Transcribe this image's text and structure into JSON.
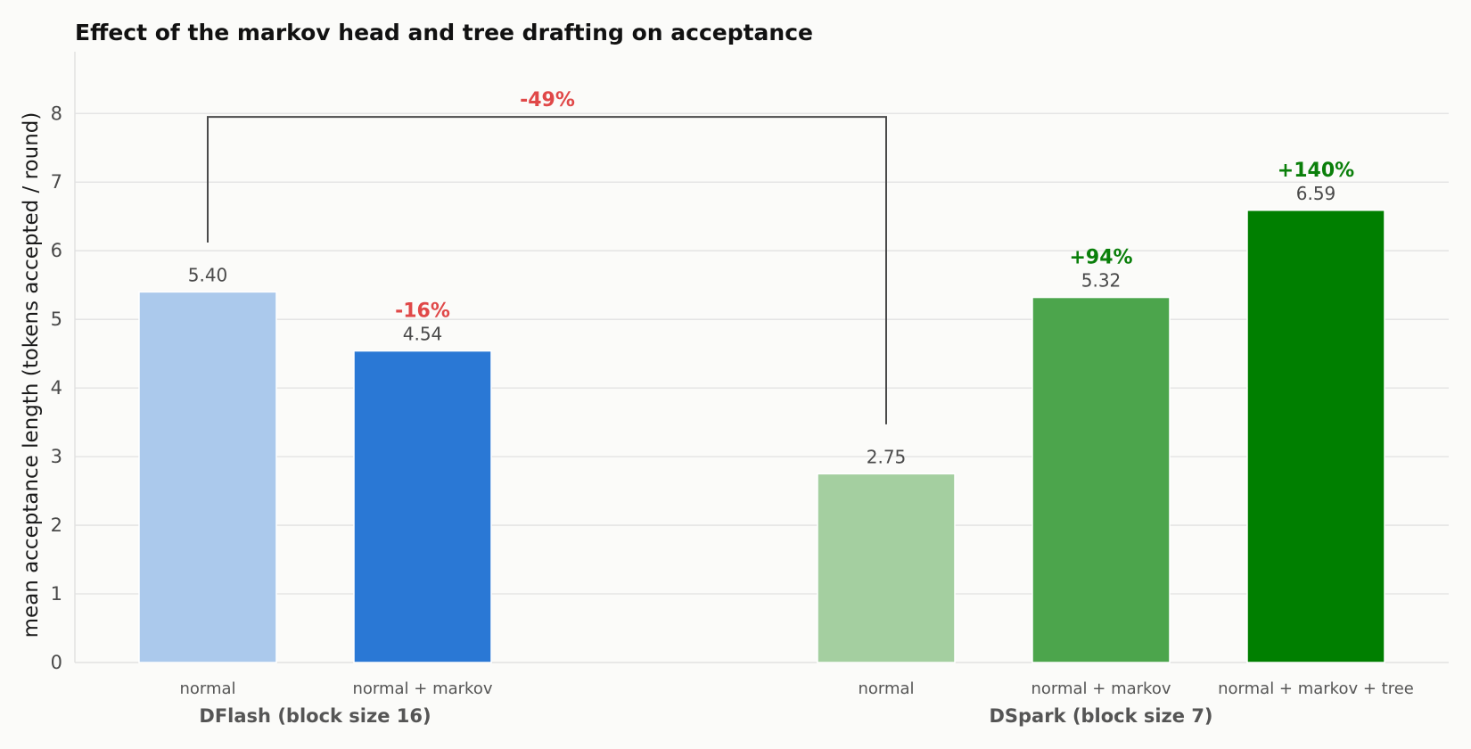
{
  "chart_data": {
    "type": "bar",
    "title": "Effect of the markov head and tree drafting on acceptance",
    "ylabel": "mean acceptance length (tokens accepted / round)",
    "ylim": [
      0,
      8.9
    ],
    "yticks": [
      "0",
      "1",
      "2",
      "3",
      "4",
      "5",
      "6",
      "7",
      "8"
    ],
    "grid": true,
    "groups": [
      {
        "name": "DFlash  (block size 16)",
        "bars": [
          {
            "label": "normal",
            "value": 5.4,
            "value_label": "5.40",
            "color": "#abc9ec",
            "delta": null,
            "delta_color": null
          },
          {
            "label": "normal + markov",
            "value": 4.54,
            "value_label": "4.54",
            "color": "#2a78d5",
            "delta": "-16%",
            "delta_color": "#e04848"
          }
        ]
      },
      {
        "name": "DSpark  (block size 7)",
        "bars": [
          {
            "label": "normal",
            "value": 2.75,
            "value_label": "2.75",
            "color": "#a4cfa0",
            "delta": null,
            "delta_color": null
          },
          {
            "label": "normal + markov",
            "value": 5.32,
            "value_label": "5.32",
            "color": "#4ca54c",
            "delta": "+94%",
            "delta_color": "#0a7f0a"
          },
          {
            "label": "normal + markov + tree",
            "value": 6.59,
            "value_label": "6.59",
            "color": "#007f00",
            "delta": "+140%",
            "delta_color": "#0a7f0a"
          }
        ]
      }
    ],
    "comparison": {
      "from": "DFlash  (block size 16) / normal",
      "to": "DSpark  (block size 7) / normal",
      "label": "-49%",
      "color": "#e04848"
    }
  }
}
